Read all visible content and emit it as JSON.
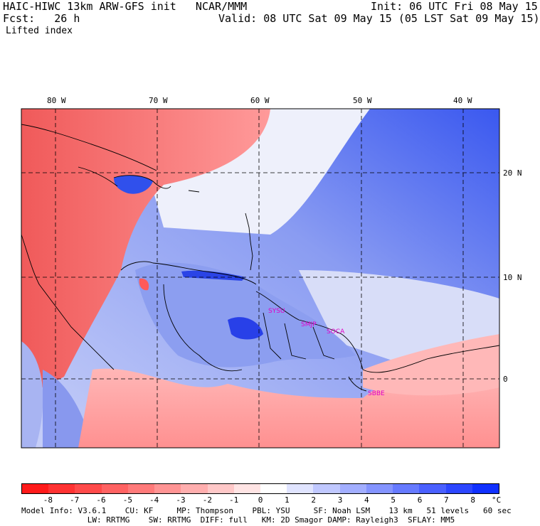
{
  "header": {
    "line1_left": "HAIC-HIWC 13km ARW-GFS init   NCAR/MMM",
    "line1_right": "Init: 06 UTC Fri 08 May 15",
    "line2_left": "Fcst:   26 h",
    "line2_right": "Valid: 08 UTC Sat 09 May 15 (05 LST Sat 09 May 15)",
    "field": "Lifted index"
  },
  "map": {
    "lon_labels": [
      "80 W",
      "70 W",
      "60 W",
      "50 W",
      "40 W"
    ],
    "lat_labels": [
      "20 N",
      "10 N",
      "0"
    ],
    "station_labels": [
      "SYSU",
      "SMJP",
      "SOCA",
      "SBBE"
    ],
    "colors": {
      "warm": "#f46c6c",
      "cool": "#8a9cf2",
      "neutral": "#e8ecf8",
      "label": "#e000c8"
    }
  },
  "colorbar": {
    "ticks": [
      "-8",
      "-7",
      "-6",
      "-5",
      "-4",
      "-3",
      "-2",
      "-1",
      "0",
      "1",
      "2",
      "3",
      "4",
      "5",
      "6",
      "7",
      "8"
    ],
    "unit": "°C",
    "colors": [
      "#ff1a1a",
      "#ff3232",
      "#ff4a4a",
      "#ff6262",
      "#ff7a7a",
      "#ff9494",
      "#ffaeae",
      "#ffc8c8",
      "#ffe4e4",
      "#ffffff",
      "#e0e4ff",
      "#c0c8ff",
      "#a2aeff",
      "#8494ff",
      "#667aff",
      "#4a60ff",
      "#2c46ff",
      "#1030ff"
    ]
  },
  "footer": {
    "line1": "Model Info: V3.6.1    CU: KF     MP: Thompson    PBL: YSU     SF: Noah LSM    13 km   51 levels   60 sec",
    "line2": "              LW: RRTMG    SW: RRTMG  DIFF: full   KM: 2D Smagor DAMP: Rayleigh3  SFLAY: MM5"
  }
}
